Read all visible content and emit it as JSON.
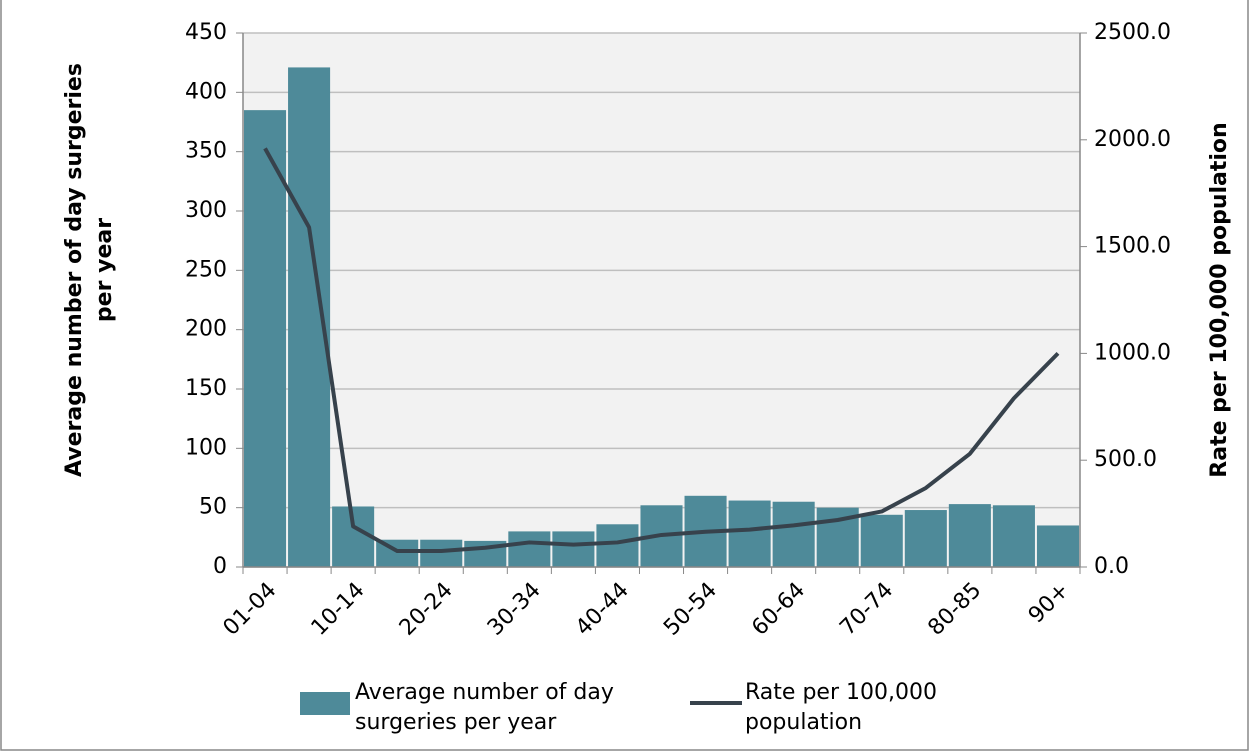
{
  "chart_data": {
    "type": "bar_line",
    "categories": [
      "01-04",
      null,
      "10-14",
      null,
      "20-24",
      null,
      "30-34",
      null,
      "40-44",
      null,
      "50-54",
      null,
      "60-64",
      null,
      "70-74",
      null,
      "80-85",
      null,
      "90+"
    ],
    "series": [
      {
        "name": "Average number of day surgeries per year",
        "type": "bar",
        "color": "#4e8a99",
        "values": [
          385,
          421,
          51,
          23,
          23,
          22,
          30,
          30,
          36,
          52,
          60,
          56,
          55,
          50,
          44,
          48,
          53,
          52,
          35
        ]
      },
      {
        "name": "Rate per 100,000 population",
        "type": "line",
        "axis": "y2",
        "color": "#37424c",
        "values": [
          1960,
          1590,
          190,
          75,
          75,
          90,
          115,
          105,
          115,
          150,
          165,
          175,
          195,
          220,
          260,
          370,
          530,
          790,
          1000
        ]
      }
    ],
    "y_label": "Average number of day surgeries per year",
    "y2_label": "Rate per 100,000 population",
    "ylim": [
      0,
      450
    ],
    "yticks": [
      0,
      50,
      100,
      150,
      200,
      250,
      300,
      350,
      400,
      450
    ],
    "y2lim": [
      0,
      2500
    ],
    "y2ticks": [
      {
        "value": 0,
        "label": "0.0"
      },
      {
        "value": 500,
        "label": "500.0"
      },
      {
        "value": 1000,
        "label": "1000.0"
      },
      {
        "value": 1500,
        "label": "1500.0"
      },
      {
        "value": 2000,
        "label": "2000.0"
      },
      {
        "value": 2500,
        "label": "2500.0"
      }
    ],
    "grid": true
  }
}
